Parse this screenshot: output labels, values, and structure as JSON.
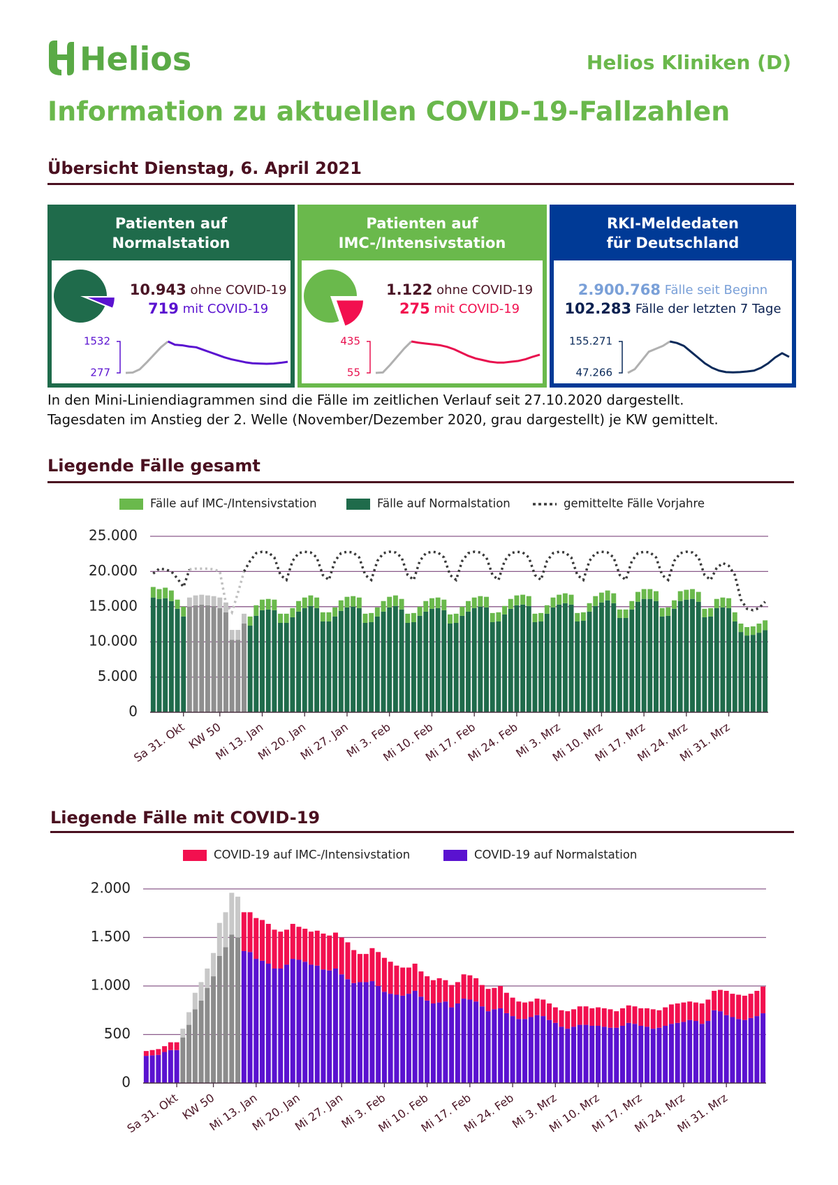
{
  "header": {
    "logo": "Helios",
    "org": "Helios Kliniken (D)",
    "title": "Information zu aktuellen COVID-19-Fallzahlen"
  },
  "overview": {
    "heading": "Übersicht Dienstag, 6. April 2021",
    "panels": [
      {
        "title": [
          "Patienten auf",
          "Normalstation"
        ],
        "color": "#1f6b4b",
        "pie": {
          "colors": [
            "#1f6b4b",
            "#5a12d0"
          ]
        },
        "stats": [
          {
            "value": 10943,
            "label": "10.943",
            "text": "ohne COVID-19",
            "color": "#4a1525"
          },
          {
            "value": 719,
            "text": "mit COVID-19",
            "color": "#5a12d0"
          }
        ],
        "sparkline": {
          "type": "line",
          "color": "#5a12d0",
          "muted_color": "#b0b0b0",
          "muted_range": [
            0,
            6
          ],
          "ylim": [
            277,
            1532
          ],
          "yticks": [
            277,
            1532
          ],
          "values": [
            277,
            290,
            420,
            700,
            1000,
            1300,
            1532,
            1400,
            1380,
            1330,
            1300,
            1200,
            1100,
            1000,
            900,
            820,
            760,
            700,
            660,
            650,
            640,
            650,
            680,
            719
          ]
        }
      },
      {
        "title": [
          "Patienten auf",
          "IMC-/Intensivstation"
        ],
        "color": "#6ab94c",
        "pie": {
          "colors": [
            "#6ab94c",
            "#f2104f"
          ]
        },
        "stats": [
          {
            "value": 1122,
            "label": "1.122",
            "text": "ohne COVID-19",
            "color": "#4a1525"
          },
          {
            "value": 275,
            "text": "mit COVID-19",
            "color": "#f2104f"
          }
        ],
        "sparkline": {
          "type": "line",
          "color": "#e8104e",
          "muted_color": "#b0b0b0",
          "muted_range": [
            0,
            5
          ],
          "ylim": [
            55,
            435
          ],
          "yticks": [
            55,
            435
          ],
          "values": [
            55,
            60,
            150,
            250,
            350,
            435,
            420,
            410,
            400,
            390,
            370,
            340,
            300,
            260,
            230,
            210,
            190,
            180,
            180,
            190,
            200,
            220,
            250,
            275
          ]
        }
      },
      {
        "title": [
          "RKI-Meldedaten",
          "für Deutschland"
        ],
        "color": "#003a96",
        "stats": [
          {
            "value": 2900768,
            "label": "2.900.768",
            "text": "Fälle seit Beginn",
            "color": "#7aa0d8"
          },
          {
            "value": 102283,
            "label": "102.283",
            "text": "Fälle der letzten 7 Tage",
            "color": "#0a2050"
          }
        ],
        "sparkline": {
          "type": "line",
          "color": "#0a2a5a",
          "muted_color": "#b0b0b0",
          "muted_range": [
            0,
            6
          ],
          "ylim": [
            47266,
            155271
          ],
          "yticks": [
            {
              "value": 47266,
              "label": "47.266"
            },
            {
              "value": 155271,
              "label": "155.271"
            }
          ],
          "values": [
            47266,
            60000,
            90000,
            120000,
            130000,
            140000,
            155271,
            150000,
            140000,
            120000,
            100000,
            80000,
            65000,
            55000,
            50000,
            49000,
            50000,
            52000,
            55000,
            65000,
            80000,
            100000,
            115000,
            102283
          ]
        }
      }
    ],
    "note": [
      "In den Mini-Liniendiagrammen sind die Fälle im zeitlichen Verlauf seit 27.10.2020 dargestellt.",
      "Tagesdaten im Anstieg der 2. Welle (November/Dezember 2020, grau dargestellt) je KW gemittelt."
    ]
  },
  "chart_data": [
    {
      "type": "bar",
      "title": "Liegende Fälle gesamt",
      "stacked": true,
      "grid": true,
      "muted_range": [
        6,
        15
      ],
      "ylim": [
        0,
        25000
      ],
      "yticks": [
        0,
        {
          "value": 5000,
          "label": "5.000"
        },
        {
          "value": 10000,
          "label": "10.000"
        },
        {
          "value": 15000,
          "label": "15.000"
        },
        {
          "value": 20000,
          "label": "20.000"
        },
        {
          "value": 25000,
          "label": "25.000"
        }
      ],
      "categories": [
        null,
        null,
        null,
        null,
        null,
        "Sa 31. Okt",
        null,
        null,
        null,
        null,
        null,
        "KW 50",
        null,
        null,
        null,
        null,
        null,
        null,
        "Mi 13. Jan",
        null,
        null,
        null,
        null,
        null,
        null,
        "Mi 20. Jan",
        null,
        null,
        null,
        null,
        null,
        null,
        "Mi 27. Jan",
        null,
        null,
        null,
        null,
        null,
        null,
        "Mi 3. Feb",
        null,
        null,
        null,
        null,
        null,
        null,
        "Mi 10. Feb",
        null,
        null,
        null,
        null,
        null,
        null,
        "Mi 17. Feb",
        null,
        null,
        null,
        null,
        null,
        null,
        "Mi 24. Feb",
        null,
        null,
        null,
        null,
        null,
        null,
        "Mi 3. Mrz",
        null,
        null,
        null,
        null,
        null,
        null,
        "Mi 10. Mrz",
        null,
        null,
        null,
        null,
        null,
        null,
        "Mi 17. Mrz",
        null,
        null,
        null,
        null,
        null,
        null,
        "Mi 24. Mrz",
        null,
        null,
        null,
        null,
        null,
        null,
        "Mi 31. Mrz",
        null,
        null,
        null,
        null,
        null,
        null
      ],
      "series": [
        {
          "name": "Fälle auf IMC-/Intensivstation",
          "color": "#6ab94c",
          "muted_color": "#c4c4c4",
          "values": [
            1500,
            1400,
            1500,
            1500,
            1300,
            1400,
            1300,
            1400,
            1400,
            1400,
            1400,
            1500,
            1400,
            1400,
            1400,
            1400,
            1300,
            1500,
            1500,
            1500,
            1500,
            1300,
            1300,
            1300,
            1500,
            1500,
            1500,
            1500,
            1300,
            1300,
            1300,
            1500,
            1500,
            1500,
            1500,
            1300,
            1300,
            1300,
            1500,
            1500,
            1500,
            1500,
            1300,
            1300,
            1300,
            1500,
            1500,
            1500,
            1500,
            1300,
            1300,
            1300,
            1500,
            1500,
            1500,
            1500,
            1300,
            1300,
            1200,
            1400,
            1400,
            1400,
            1400,
            1200,
            1200,
            1200,
            1400,
            1400,
            1400,
            1400,
            1200,
            1200,
            1200,
            1400,
            1400,
            1400,
            1400,
            1200,
            1200,
            1200,
            1400,
            1400,
            1400,
            1400,
            1200,
            1200,
            1200,
            1400,
            1400,
            1400,
            1400,
            1200,
            1200,
            1300,
            1400,
            1400,
            1300,
            1200,
            1200,
            1200,
            1300,
            1397
          ]
        },
        {
          "name": "Fälle auf Normalstation",
          "color": "#1f6b4b",
          "muted_color": "#8f8f8f",
          "values": [
            16300,
            16100,
            16200,
            15800,
            14700,
            13600,
            15000,
            15200,
            15300,
            15200,
            15100,
            14800,
            14200,
            10300,
            10300,
            12600,
            12300,
            13700,
            14500,
            14600,
            14500,
            12700,
            12700,
            13500,
            14300,
            14800,
            15100,
            14800,
            12900,
            12900,
            13600,
            14400,
            14900,
            15000,
            14800,
            12700,
            12800,
            13600,
            14300,
            14900,
            15100,
            14600,
            12700,
            12800,
            13700,
            14300,
            14700,
            14800,
            14500,
            12600,
            12700,
            13700,
            14300,
            14800,
            15000,
            14900,
            12800,
            12900,
            13900,
            14700,
            15200,
            15300,
            15100,
            12800,
            12900,
            14000,
            14900,
            15300,
            15500,
            15300,
            12900,
            13000,
            14300,
            15100,
            15600,
            15900,
            15500,
            13400,
            13400,
            14600,
            15700,
            16100,
            16100,
            15800,
            13600,
            13700,
            14700,
            15800,
            16000,
            16100,
            15700,
            13500,
            13600,
            14800,
            14900,
            14800,
            12900,
            11400,
            10900,
            11000,
            11300,
            11662
          ]
        },
        {
          "name": "gemittelte Fälle Vorjahre",
          "type": "line",
          "dash": true,
          "color": "#3a3a3a",
          "muted_color": "#c0c0c0",
          "values": [
            19700,
            20400,
            20300,
            20000,
            19000,
            17800,
            20300,
            20400,
            20400,
            20400,
            20300,
            20000,
            15500,
            14200,
            17000,
            20000,
            21500,
            22600,
            22800,
            22700,
            22000,
            19500,
            18800,
            21500,
            22600,
            22800,
            22700,
            22000,
            19500,
            18800,
            21500,
            22600,
            22800,
            22700,
            22000,
            19500,
            18800,
            21500,
            22600,
            22800,
            22700,
            22000,
            19500,
            18800,
            21500,
            22600,
            22800,
            22700,
            22000,
            19500,
            18800,
            21500,
            22600,
            22800,
            22700,
            22000,
            19500,
            18800,
            21500,
            22600,
            22800,
            22700,
            22000,
            19500,
            18800,
            21500,
            22600,
            22800,
            22700,
            22000,
            19500,
            18800,
            21500,
            22600,
            22800,
            22700,
            22000,
            19500,
            18800,
            21500,
            22600,
            22800,
            22700,
            22000,
            19500,
            18800,
            21500,
            22600,
            22800,
            22700,
            22000,
            19500,
            18800,
            20500,
            21200,
            20800,
            19500,
            16000,
            14700,
            14500,
            14800,
            15700
          ]
        }
      ]
    },
    {
      "type": "bar",
      "title": "Liegende Fälle mit COVID-19",
      "stacked": true,
      "grid": true,
      "muted_range": [
        6,
        15
      ],
      "ylim": [
        0,
        2000
      ],
      "yticks": [
        0,
        500,
        {
          "value": 1000,
          "label": "1.000"
        },
        {
          "value": 1500,
          "label": "1.500"
        },
        {
          "value": 2000,
          "label": "2.000"
        }
      ],
      "categories": [
        null,
        null,
        null,
        null,
        null,
        "Sa 31. Okt",
        null,
        null,
        null,
        null,
        null,
        "KW 50",
        null,
        null,
        null,
        null,
        null,
        null,
        "Mi 13. Jan",
        null,
        null,
        null,
        null,
        null,
        null,
        "Mi 20. Jan",
        null,
        null,
        null,
        null,
        null,
        null,
        "Mi 27. Jan",
        null,
        null,
        null,
        null,
        null,
        null,
        "Mi 3. Feb",
        null,
        null,
        null,
        null,
        null,
        null,
        "Mi 10. Feb",
        null,
        null,
        null,
        null,
        null,
        null,
        "Mi 17. Feb",
        null,
        null,
        null,
        null,
        null,
        null,
        "Mi 24. Feb",
        null,
        null,
        null,
        null,
        null,
        null,
        "Mi 3. Mrz",
        null,
        null,
        null,
        null,
        null,
        null,
        "Mi 10. Mrz",
        null,
        null,
        null,
        null,
        null,
        null,
        "Mi 17. Mrz",
        null,
        null,
        null,
        null,
        null,
        null,
        "Mi 24. Mrz",
        null,
        null,
        null,
        null,
        null,
        null,
        "Mi 31. Mrz",
        null,
        null,
        null,
        null,
        null,
        null
      ],
      "series": [
        {
          "name": "COVID-19 auf IMC-/Intensivstation",
          "color": "#f2104f",
          "muted_color": "#c8c8c8",
          "values": [
            50,
            55,
            60,
            60,
            80,
            80,
            90,
            130,
            170,
            190,
            200,
            240,
            340,
            360,
            430,
            420,
            400,
            410,
            420,
            420,
            410,
            400,
            380,
            360,
            360,
            340,
            340,
            340,
            360,
            370,
            360,
            370,
            380,
            380,
            340,
            290,
            290,
            340,
            350,
            350,
            330,
            300,
            290,
            270,
            280,
            260,
            250,
            240,
            250,
            220,
            230,
            220,
            250,
            250,
            240,
            220,
            230,
            220,
            230,
            210,
            190,
            180,
            170,
            160,
            170,
            170,
            170,
            160,
            170,
            180,
            180,
            190,
            190,
            180,
            190,
            190,
            190,
            170,
            180,
            180,
            180,
            180,
            190,
            200,
            180,
            190,
            200,
            200,
            200,
            190,
            190,
            210,
            220,
            200,
            220,
            250,
            240,
            250,
            250,
            250,
            260,
            275
          ]
        },
        {
          "name": "COVID-19 auf Normalstation",
          "color": "#5a12d0",
          "muted_color": "#8c8c8c",
          "values": [
            280,
            285,
            290,
            320,
            340,
            340,
            470,
            600,
            760,
            850,
            980,
            1100,
            1310,
            1400,
            1530,
            1500,
            1360,
            1350,
            1280,
            1260,
            1230,
            1180,
            1180,
            1220,
            1280,
            1270,
            1250,
            1220,
            1210,
            1170,
            1160,
            1180,
            1120,
            1070,
            1030,
            1040,
            1040,
            1050,
            1000,
            940,
            920,
            910,
            900,
            920,
            950,
            890,
            850,
            820,
            830,
            840,
            780,
            820,
            870,
            860,
            840,
            790,
            740,
            760,
            770,
            720,
            690,
            660,
            660,
            680,
            700,
            690,
            650,
            620,
            580,
            560,
            580,
            600,
            600,
            590,
            590,
            580,
            570,
            570,
            590,
            620,
            610,
            590,
            580,
            560,
            570,
            590,
            610,
            620,
            630,
            650,
            640,
            610,
            640,
            750,
            740,
            700,
            680,
            660,
            650,
            670,
            690,
            719
          ]
        }
      ]
    }
  ]
}
